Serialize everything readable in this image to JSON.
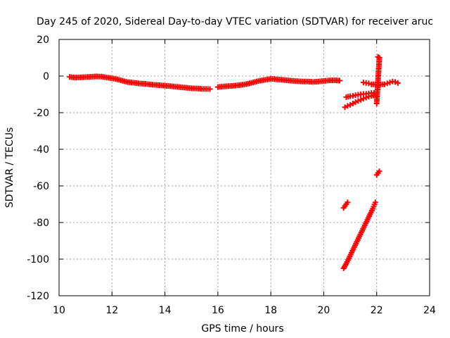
{
  "chart_data": {
    "type": "scatter",
    "title": "Day 245 of 2020, Sidereal Day-to-day VTEC variation (SDTVAR) for receiver aruc",
    "xlabel": "GPS time / hours",
    "ylabel": "SDTVAR / TECUs",
    "xlim": [
      10,
      24
    ],
    "ylim": [
      -120,
      20
    ],
    "x_ticks": [
      10,
      12,
      14,
      16,
      18,
      20,
      22,
      24
    ],
    "y_ticks": [
      -120,
      -100,
      -80,
      -60,
      -40,
      -20,
      0,
      20
    ],
    "grid": true,
    "marker": "plus",
    "color": "#ff0000",
    "series": [
      {
        "name": "main-trace-1",
        "x": [
          10.4,
          10.6,
          10.8,
          11.0,
          11.2,
          11.4,
          11.6,
          11.8,
          12.0,
          12.2,
          12.4,
          12.6,
          12.8,
          13.0,
          13.2,
          13.4,
          13.6,
          13.8,
          14.0,
          14.2,
          14.4,
          14.6,
          14.8,
          15.0,
          15.2,
          15.4,
          15.7
        ],
        "y": [
          -0.5,
          -0.8,
          -0.7,
          -0.6,
          -0.4,
          -0.2,
          -0.3,
          -0.8,
          -1.2,
          -1.8,
          -2.6,
          -3.3,
          -3.6,
          -4.0,
          -4.2,
          -4.5,
          -4.8,
          -5.0,
          -5.3,
          -5.5,
          -5.8,
          -6.1,
          -6.4,
          -6.7,
          -6.8,
          -7.0,
          -7.1
        ]
      },
      {
        "name": "main-trace-2",
        "x": [
          16.0,
          16.2,
          16.4,
          16.6,
          16.8,
          17.0,
          17.2,
          17.4,
          17.6,
          17.8,
          18.0,
          18.2,
          18.4,
          18.6,
          18.8,
          19.0,
          19.2,
          19.4,
          19.6,
          19.8,
          20.0,
          20.2,
          20.4,
          20.6
        ],
        "y": [
          -6.0,
          -5.7,
          -5.5,
          -5.3,
          -5.0,
          -4.6,
          -4.0,
          -3.2,
          -2.5,
          -2.0,
          -1.5,
          -1.8,
          -2.0,
          -2.3,
          -2.6,
          -2.8,
          -3.0,
          -3.0,
          -3.2,
          -3.0,
          -2.7,
          -2.4,
          -2.3,
          -2.5
        ]
      },
      {
        "name": "late-segment-upper",
        "x": [
          20.85,
          21.0,
          21.1,
          21.2,
          21.3,
          21.4,
          21.5,
          21.6,
          21.7,
          21.8,
          21.9
        ],
        "y": [
          -11.5,
          -11.0,
          -10.8,
          -10.5,
          -10.2,
          -10.0,
          -9.8,
          -9.7,
          -9.5,
          -9.3,
          -9.2
        ]
      },
      {
        "name": "late-segment-lower",
        "x": [
          20.8,
          20.9,
          21.0,
          21.1,
          21.2,
          21.3,
          21.4,
          21.5,
          21.6,
          21.7,
          21.8,
          21.95
        ],
        "y": [
          -17.0,
          -16.3,
          -15.7,
          -15.0,
          -14.3,
          -13.6,
          -13.0,
          -12.3,
          -11.8,
          -11.2,
          -10.8,
          -10.4
        ]
      },
      {
        "name": "late-segment-right",
        "x": [
          21.5,
          21.6,
          21.7,
          21.8,
          22.3,
          22.4,
          22.5,
          22.6,
          22.7,
          22.8
        ],
        "y": [
          -3.5,
          -3.8,
          -4.0,
          -4.5,
          -4.5,
          -4.0,
          -3.5,
          -3.0,
          -3.2,
          -3.8
        ]
      },
      {
        "name": "steep-ramp",
        "x": [
          20.75,
          20.85,
          20.95,
          21.05,
          21.15,
          21.25,
          21.35,
          21.45,
          21.55,
          21.65,
          21.75,
          21.85,
          21.95
        ],
        "y": [
          -105.0,
          -102.5,
          -99.5,
          -96.5,
          -93.5,
          -90.5,
          -87.5,
          -84.5,
          -81.5,
          -78.5,
          -75.5,
          -72.5,
          -69.0
        ]
      },
      {
        "name": "short-ramp-1",
        "x": [
          20.75,
          20.8,
          20.85,
          20.9
        ],
        "y": [
          -72.0,
          -71.0,
          -70.0,
          -69.0
        ]
      },
      {
        "name": "short-ramp-2",
        "x": [
          22.0,
          22.05,
          22.1
        ],
        "y": [
          -54.0,
          -53.0,
          -52.0
        ]
      },
      {
        "name": "isolated-points",
        "x": [
          22.05,
          22.1,
          22.0
        ],
        "y": [
          10.5,
          10.0,
          -15.0
        ]
      }
    ]
  }
}
